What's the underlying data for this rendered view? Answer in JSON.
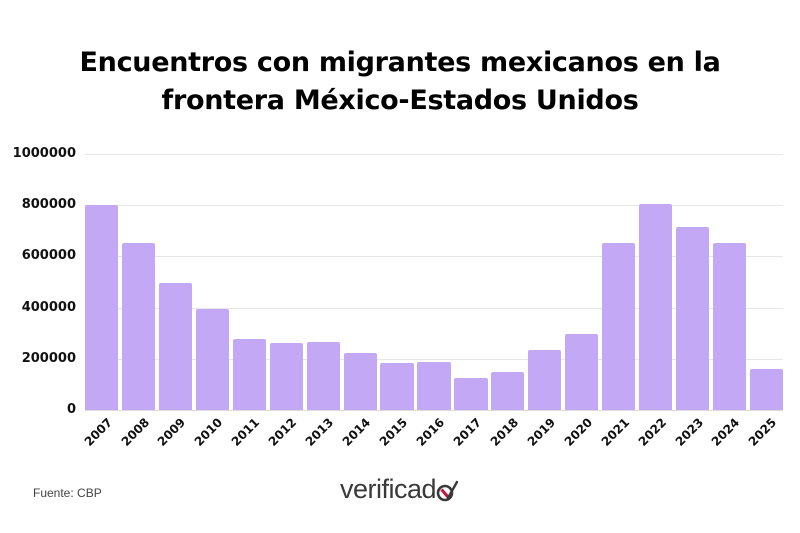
{
  "title_lines": [
    "Encuentros con migrantes mexicanos en la",
    "frontera México-Estados Unidos"
  ],
  "footer": {
    "source": "Fuente: CBP",
    "logo_text": "verificad",
    "logo_icon": "check-o-icon",
    "logo_accent_color": "#c8143c"
  },
  "colors": {
    "bar": "#c3a9f5",
    "grid": "#e6e6e6",
    "text": "#111111"
  },
  "y_ticks": [
    "1000000",
    "800000",
    "600000",
    "400000",
    "200000",
    "0"
  ],
  "x_ticks": [
    "2007",
    "2008",
    "2009",
    "2010",
    "2011",
    "2012",
    "2013",
    "2014",
    "2015",
    "2016",
    "2017",
    "2018",
    "2019",
    "2020",
    "2021",
    "2022",
    "2023",
    "2024",
    "2025"
  ],
  "chart_data": {
    "type": "bar",
    "title": "Encuentros con migrantes mexicanos en la frontera México-Estados Unidos",
    "xlabel": "",
    "ylabel": "",
    "categories": [
      "2007",
      "2008",
      "2009",
      "2010",
      "2011",
      "2012",
      "2013",
      "2014",
      "2015",
      "2016",
      "2017",
      "2018",
      "2019",
      "2020",
      "2021",
      "2022",
      "2023",
      "2024",
      "2025"
    ],
    "values": [
      800000,
      652000,
      495000,
      396000,
      279000,
      260000,
      264000,
      224000,
      185000,
      188000,
      124000,
      150000,
      234000,
      297000,
      653000,
      805000,
      715000,
      653000,
      160000
    ],
    "ylim": [
      0,
      1000000
    ],
    "yticks": [
      0,
      200000,
      400000,
      600000,
      800000,
      1000000
    ],
    "grid": true,
    "legend": null,
    "source": "Fuente: CBP"
  }
}
